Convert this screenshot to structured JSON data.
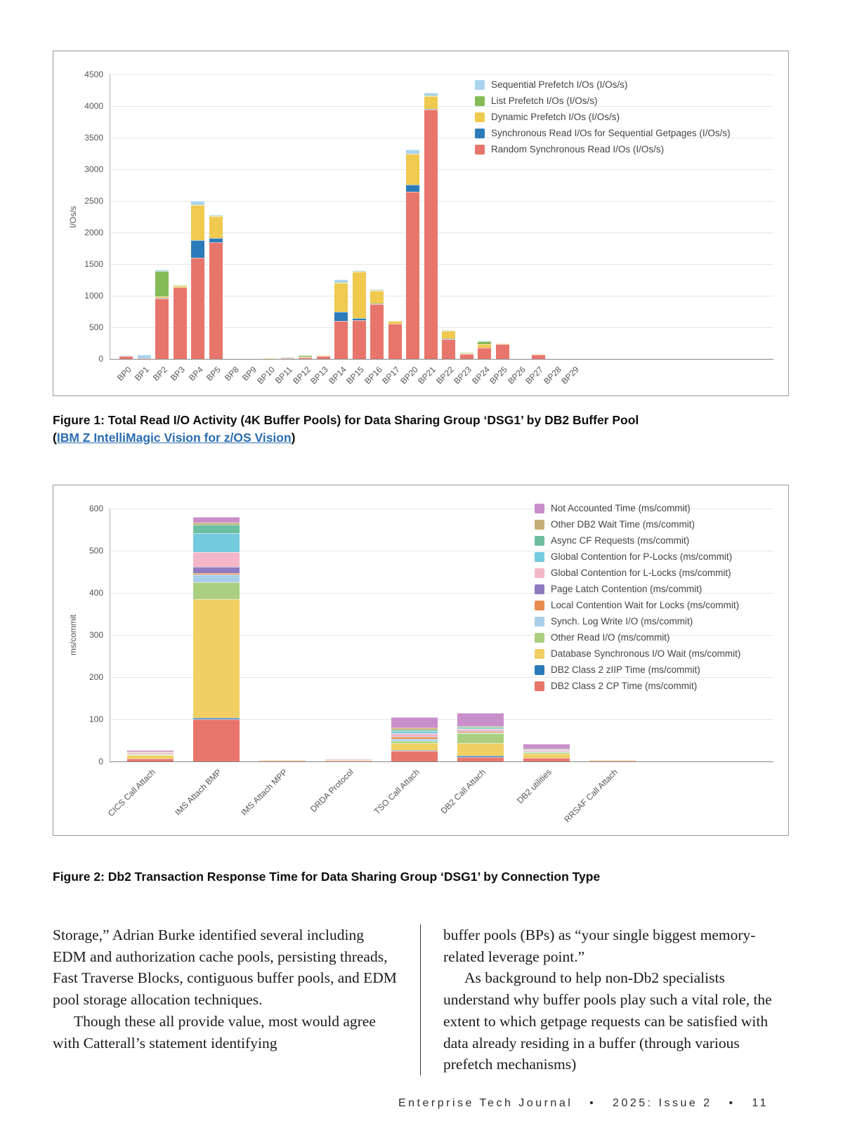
{
  "figure1": {
    "caption": "Figure 1: Total Read I/O Activity (4K Buffer Pools) for Data Sharing Group ‘DSG1’ by DB2 Buffer Pool",
    "paren_open": "(",
    "link": "IBM Z IntelliMagic Vision for z/OS Vision",
    "paren_close": ")"
  },
  "figure2": {
    "caption": "Figure 2: Db2 Transaction Response Time for Data Sharing Group ‘DSG1’ by Connection Type"
  },
  "body": {
    "left": [
      "Storage,” Adrian Burke identified several including EDM and authorization cache pools, persisting threads, Fast Traverse Blocks, contiguous buffer pools, and EDM pool storage allocation techniques.",
      "Though these all provide value, most would agree with Catterall’s statement identifying"
    ],
    "right": [
      "buffer pools (BPs) as “your single biggest memory-related leverage point.”",
      "As background to help non-Db2 specialists understand why buffer pools play such a vital role, the extent to which getpage requests can be satisfied with data already residing in a buffer (through various prefetch mechanisms)"
    ]
  },
  "footer": "Enterprise Tech Journal   •   2025: Issue 2   •   11",
  "chart_data": [
    {
      "type": "bar",
      "stacked": true,
      "title": "",
      "xlabel": "",
      "ylabel": "I/Os/s",
      "ylim": [
        0,
        4500
      ],
      "ytick_step": 500,
      "grid": true,
      "legend_position": "top-right",
      "categories": [
        "BP0",
        "BP1",
        "BP2",
        "BP3",
        "BP4",
        "BP5",
        "BP8",
        "BP9",
        "BP10",
        "BP11",
        "BP12",
        "BP13",
        "BP14",
        "BP15",
        "BP16",
        "BP17",
        "BP20",
        "BP21",
        "BP22",
        "BP23",
        "BP24",
        "BP25",
        "BP26",
        "BP27",
        "BP28",
        "BP29"
      ],
      "series": [
        {
          "name": "Random Synchronous Read I/Os (I/Os/s)",
          "color": "#e8756b",
          "values": [
            50,
            10,
            960,
            1130,
            1600,
            1850,
            0,
            0,
            5,
            10,
            20,
            40,
            600,
            610,
            870,
            560,
            2650,
            3950,
            310,
            80,
            180,
            230,
            0,
            70,
            0,
            0
          ]
        },
        {
          "name": "Synchronous Read I/Os for Sequential Getpages (I/Os/s)",
          "color": "#2b7bba",
          "values": [
            0,
            0,
            10,
            0,
            280,
            60,
            0,
            0,
            0,
            0,
            0,
            0,
            150,
            30,
            10,
            0,
            110,
            10,
            10,
            0,
            0,
            0,
            0,
            0,
            0,
            0
          ]
        },
        {
          "name": "Dynamic Prefetch I/Os (I/Os/s)",
          "color": "#f0c94f",
          "values": [
            0,
            0,
            20,
            30,
            550,
            350,
            0,
            0,
            5,
            5,
            10,
            5,
            450,
            740,
            200,
            40,
            480,
            200,
            120,
            10,
            50,
            10,
            0,
            5,
            0,
            0
          ]
        },
        {
          "name": "List Prefetch I/Os (I/Os/s)",
          "color": "#85bb56",
          "values": [
            0,
            5,
            400,
            10,
            20,
            10,
            0,
            0,
            0,
            5,
            30,
            0,
            10,
            10,
            10,
            0,
            10,
            10,
            10,
            10,
            50,
            0,
            0,
            0,
            0,
            0
          ]
        },
        {
          "name": "Sequential Prefetch I/Os (I/Os/s)",
          "color": "#a9d5ef",
          "values": [
            5,
            55,
            20,
            0,
            50,
            10,
            0,
            0,
            0,
            0,
            0,
            0,
            50,
            10,
            10,
            0,
            60,
            40,
            10,
            0,
            10,
            0,
            0,
            0,
            0,
            0
          ]
        }
      ]
    },
    {
      "type": "bar",
      "stacked": true,
      "title": "",
      "xlabel": "",
      "ylabel": "ms/commit",
      "ylim": [
        0,
        600
      ],
      "ytick_step": 100,
      "grid": true,
      "legend_position": "top-right",
      "categories": [
        "CICS Call Attach",
        "IMS Attach BMP",
        "IMS Attach MPP",
        "DRDA Protocol",
        "TSO Call Attach",
        "DB2 Call Attach",
        "DB2 utilities",
        "RRSAF Call Attach"
      ],
      "series": [
        {
          "name": "DB2 Class 2 CP Time (ms/commit)",
          "color": "#e8756b",
          "values": [
            7,
            100,
            2,
            2,
            25,
            10,
            8,
            1
          ]
        },
        {
          "name": "DB2 Class 2 zIIP Time (ms/commit)",
          "color": "#2b7bba",
          "values": [
            0,
            3,
            0,
            0,
            1,
            4,
            1,
            0
          ]
        },
        {
          "name": "Database Synchronous I/O Wait (ms/commit)",
          "color": "#f0cf63",
          "values": [
            8,
            282,
            1,
            1,
            18,
            30,
            10,
            1
          ]
        },
        {
          "name": "Other Read I/O (ms/commit)",
          "color": "#a9cf7f",
          "values": [
            2,
            40,
            0,
            0,
            5,
            22,
            3,
            0
          ]
        },
        {
          "name": "Synch. Log Write I/O (ms/commit)",
          "color": "#a9cfe8",
          "values": [
            2,
            18,
            0,
            0,
            5,
            3,
            1,
            0
          ]
        },
        {
          "name": "Local Contention Wait for Locks (ms/commit)",
          "color": "#e98d4e",
          "values": [
            0,
            4,
            0,
            0,
            4,
            2,
            1,
            0
          ]
        },
        {
          "name": "Page Latch Contention (ms/commit)",
          "color": "#8f7bbf",
          "values": [
            0,
            15,
            0,
            0,
            2,
            2,
            0,
            0
          ]
        },
        {
          "name": "Global Contention for L-Locks (ms/commit)",
          "color": "#f4b7c9",
          "values": [
            2,
            35,
            0,
            0,
            6,
            3,
            2,
            0
          ]
        },
        {
          "name": "Global Contention for P-Locks (ms/commit)",
          "color": "#74cbdd",
          "values": [
            1,
            45,
            0,
            0,
            6,
            3,
            1,
            0
          ]
        },
        {
          "name": "Async CF Requests (ms/commit)",
          "color": "#6cbf9f",
          "values": [
            0,
            20,
            0,
            0,
            3,
            2,
            1,
            0
          ]
        },
        {
          "name": "Other DB2 Wait Time (ms/commit)",
          "color": "#c5af76",
          "values": [
            1,
            5,
            0,
            1,
            5,
            3,
            2,
            0
          ]
        },
        {
          "name": "Not Accounted Time (ms/commit)",
          "color": "#c98fcb",
          "values": [
            3,
            13,
            0,
            1,
            25,
            31,
            11,
            0
          ]
        }
      ]
    }
  ]
}
